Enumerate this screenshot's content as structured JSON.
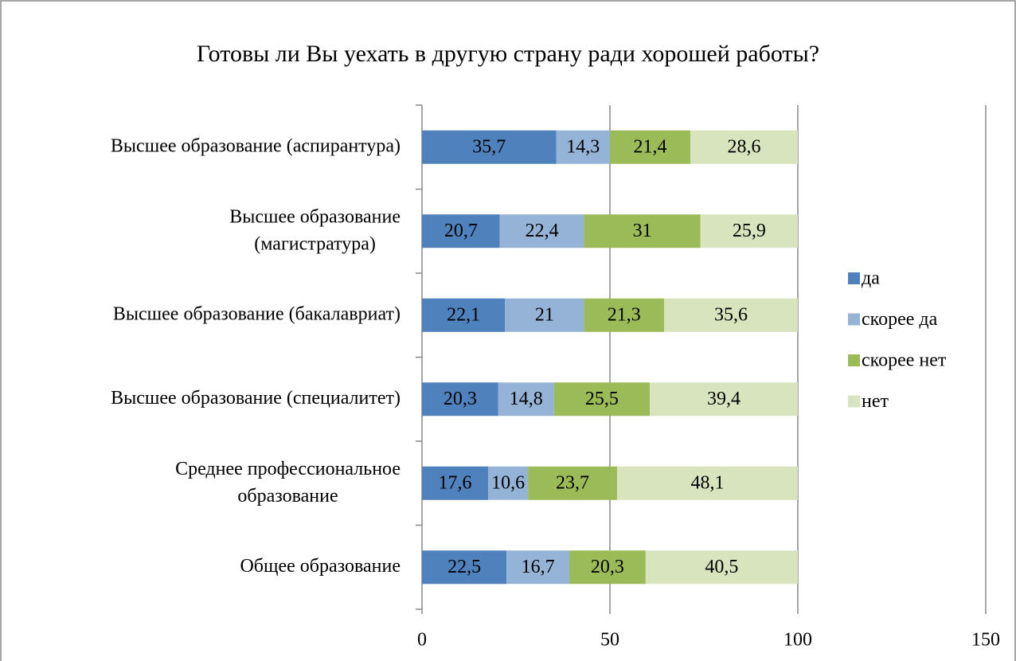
{
  "chart_data": {
    "type": "stacked-bar-horizontal",
    "title": "Готовы ли Вы уехать в другую страну ради хорошей  работы?",
    "categories": [
      "Высшее образование (аспирантура)",
      "Высшее образование\n(магистратура)",
      "Высшее образование (бакалавриат)",
      "Высшее образование (специалитет)",
      "Среднее профессиональное\nобразование",
      "Общее образование"
    ],
    "series": [
      {
        "name": "да",
        "color": "#4f81bd",
        "values": [
          35.7,
          20.7,
          22.1,
          20.3,
          17.6,
          22.5
        ],
        "value_labels": [
          "35,7",
          "20,7",
          "22,1",
          "20,3",
          "17,6",
          "22,5"
        ]
      },
      {
        "name": "скорее да",
        "color": "#95b3d7",
        "values": [
          14.3,
          22.4,
          21,
          14.8,
          10.6,
          16.7
        ],
        "value_labels": [
          "14,3",
          "22,4",
          "21",
          "14,8",
          "10,6",
          "16,7"
        ]
      },
      {
        "name": "скорее нет",
        "color": "#9bbb59",
        "values": [
          21.4,
          31,
          21.3,
          25.5,
          23.7,
          20.3
        ],
        "value_labels": [
          "21,4",
          "31",
          "21,3",
          "25,5",
          "23,7",
          "20,3"
        ]
      },
      {
        "name": "нет",
        "color": "#d7e4bd",
        "values": [
          28.6,
          25.9,
          35.6,
          39.4,
          48.1,
          40.5
        ],
        "value_labels": [
          "28,6",
          "25,9",
          "35,6",
          "39,4",
          "48,1",
          "40,5"
        ]
      }
    ],
    "xlim": [
      0,
      150
    ],
    "xticks": [
      0,
      50,
      100,
      150
    ],
    "grid": true,
    "legend": "right"
  }
}
